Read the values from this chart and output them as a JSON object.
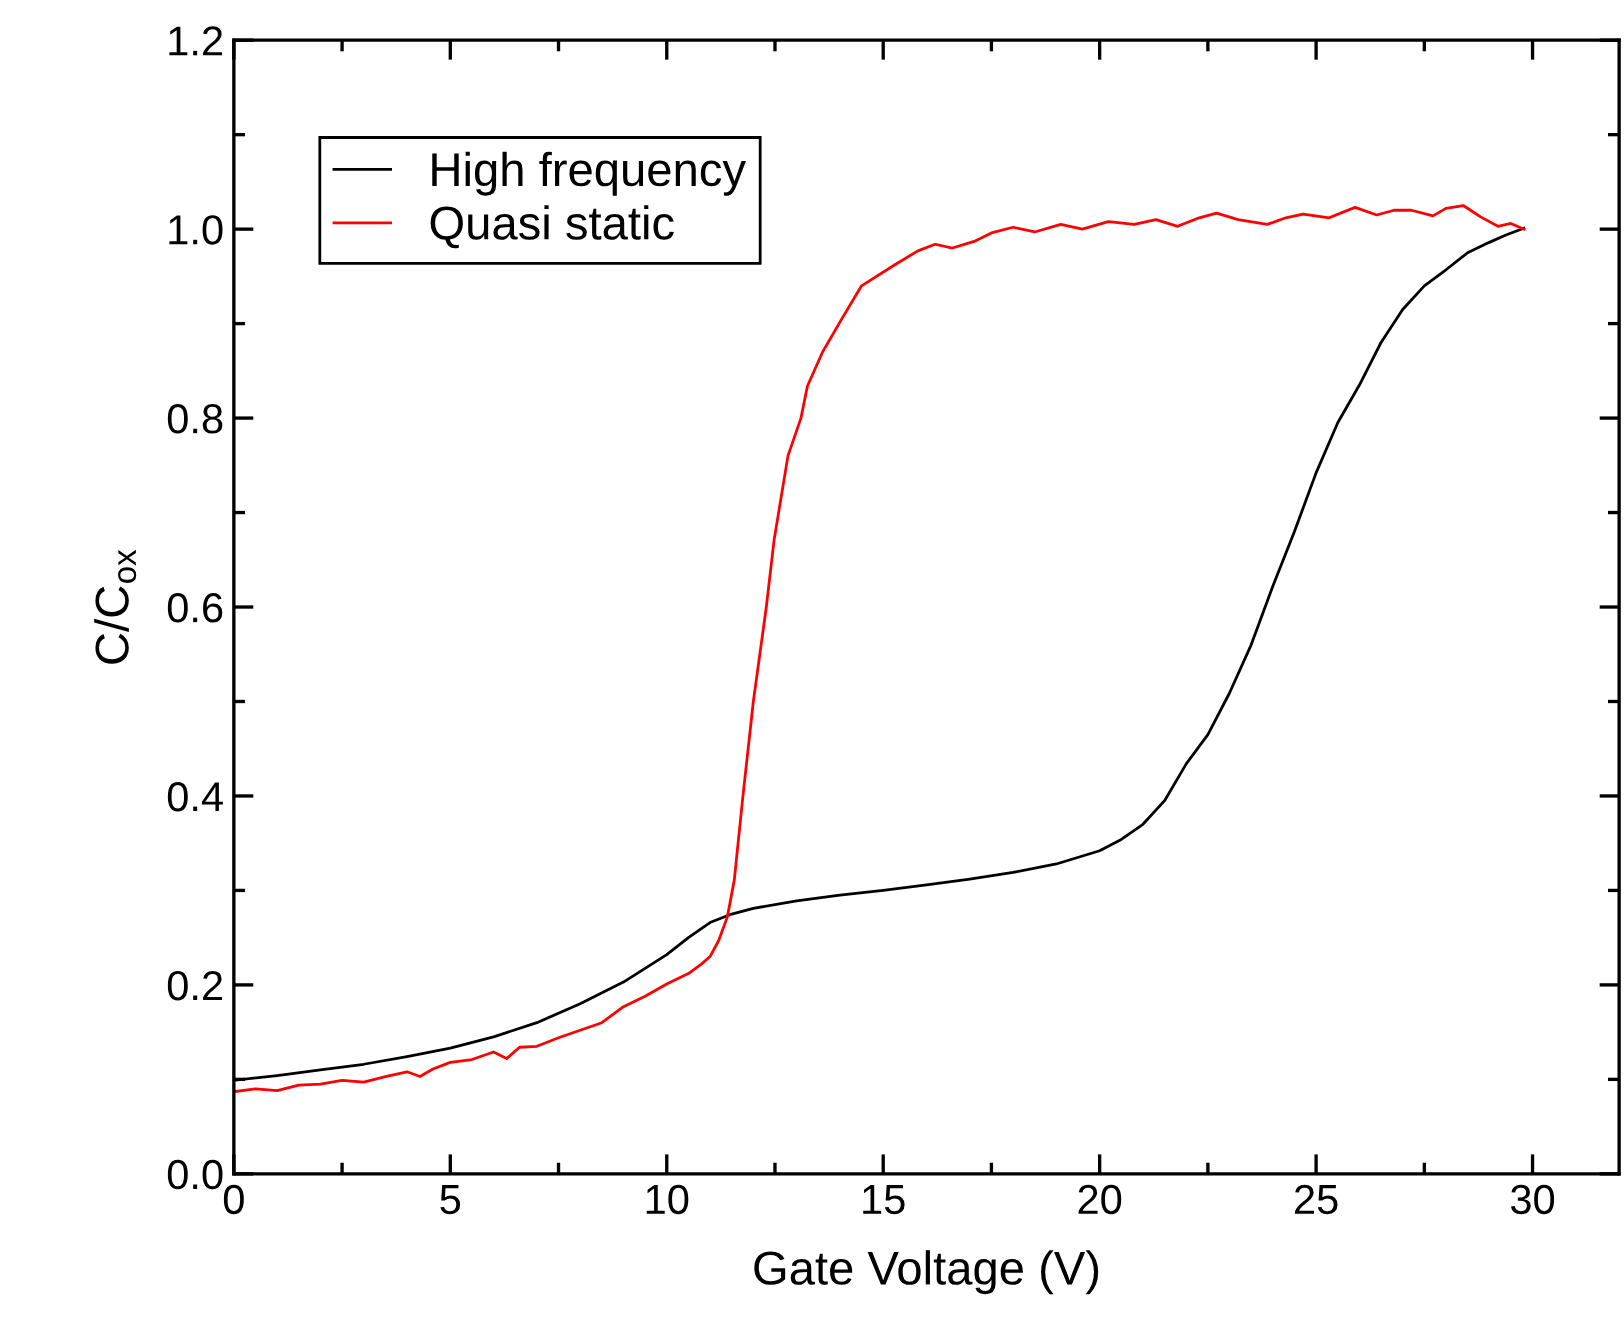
{
  "chart_data": {
    "type": "line",
    "xlabel": "Gate Voltage (V)",
    "ylabel": "C/C$_{ox}$",
    "xlim": [
      0,
      32
    ],
    "xticks": [
      0,
      5,
      10,
      15,
      20,
      25,
      30
    ],
    "ylim": [
      0,
      1.2
    ],
    "yticks": [
      {
        "value": 0,
        "label": "0.0"
      },
      0.2,
      0.4,
      0.6,
      0.8,
      {
        "value": 1,
        "label": "1.0"
      },
      1.2
    ],
    "grid": false,
    "legend": "top left",
    "marker": "none",
    "line_style": "solid",
    "series": [
      {
        "name": "High frequency",
        "color": "#000000",
        "x": [
          0,
          1,
          2,
          3,
          4,
          5,
          6,
          7,
          8,
          9,
          10,
          10.5,
          11,
          11.5,
          12,
          13,
          14,
          15,
          16,
          17,
          18,
          19,
          20,
          20.5,
          21,
          21.5,
          22,
          22.5,
          23,
          23.5,
          24,
          24.5,
          25,
          25.5,
          26,
          26.5,
          27,
          27.5,
          28,
          28.5,
          29,
          29.4,
          29.8
        ],
        "values": [
          0.099,
          0.104,
          0.11,
          0.116,
          0.124,
          0.133,
          0.145,
          0.16,
          0.18,
          0.203,
          0.232,
          0.25,
          0.266,
          0.275,
          0.281,
          0.289,
          0.295,
          0.3,
          0.306,
          0.312,
          0.319,
          0.328,
          0.342,
          0.354,
          0.37,
          0.395,
          0.434,
          0.465,
          0.509,
          0.56,
          0.622,
          0.68,
          0.742,
          0.795,
          0.835,
          0.88,
          0.915,
          0.94,
          0.957,
          0.975,
          0.986,
          0.994,
          1.001
        ]
      },
      {
        "name": "Quasi static",
        "color": "#ff0000",
        "x": [
          0,
          0.5,
          1,
          1.5,
          2,
          2.5,
          3,
          3.5,
          4,
          4.3,
          4.6,
          5,
          5.5,
          6,
          6.3,
          6.6,
          7,
          7.5,
          8,
          8.5,
          9,
          9.5,
          10,
          10.5,
          10.8,
          11,
          11.2,
          11.4,
          11.56,
          11.76,
          12,
          12.3,
          12.48,
          12.8,
          13.1,
          13.25,
          13.6,
          14.03,
          14.5,
          15.26,
          15.8,
          16.2,
          16.6,
          17.1,
          17.5,
          18.0,
          18.5,
          19.1,
          19.6,
          20.2,
          20.8,
          21.3,
          21.8,
          22.3,
          22.7,
          23.2,
          23.87,
          24.3,
          24.7,
          25.3,
          25.9,
          26.4,
          26.8,
          27.2,
          27.7,
          28.0,
          28.4,
          28.8,
          29.2,
          29.5,
          29.8
        ],
        "values": [
          0.087,
          0.09,
          0.088,
          0.094,
          0.095,
          0.099,
          0.097,
          0.103,
          0.108,
          0.103,
          0.111,
          0.118,
          0.121,
          0.129,
          0.122,
          0.134,
          0.135,
          0.144,
          0.152,
          0.16,
          0.177,
          0.188,
          0.201,
          0.212,
          0.222,
          0.23,
          0.247,
          0.272,
          0.311,
          0.4,
          0.5,
          0.6,
          0.671,
          0.76,
          0.8,
          0.834,
          0.87,
          0.904,
          0.94,
          0.962,
          0.977,
          0.984,
          0.98,
          0.987,
          0.996,
          1.002,
          0.997,
          1.005,
          1.0,
          1.008,
          1.005,
          1.01,
          1.003,
          1.012,
          1.017,
          1.01,
          1.005,
          1.012,
          1.016,
          1.012,
          1.023,
          1.015,
          1.02,
          1.02,
          1.014,
          1.022,
          1.025,
          1.013,
          1.003,
          1.006,
          1.0
        ]
      }
    ]
  }
}
